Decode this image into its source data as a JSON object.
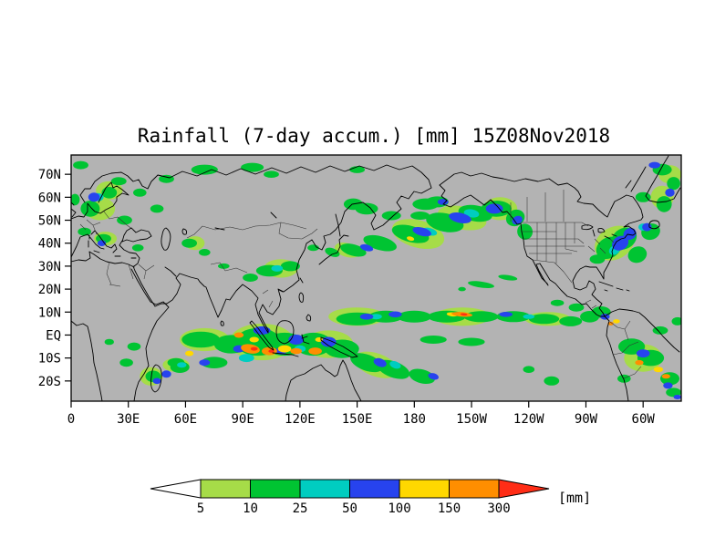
{
  "chart_data": {
    "type": "heatmap",
    "title": "Rainfall (7-day accum.) [mm] 15Z08Nov2018",
    "variable": "7-day accumulated rainfall",
    "units": "mm",
    "valid_time_label": "15Z08Nov2018",
    "projection": "equirectangular",
    "background_color": "#b3b3b3",
    "lon_range": [
      0,
      320
    ],
    "lat_range": [
      -28.8,
      78.4
    ],
    "x_ticks": [
      {
        "label": "0",
        "lon": 0
      },
      {
        "label": "30E",
        "lon": 30
      },
      {
        "label": "60E",
        "lon": 60
      },
      {
        "label": "90E",
        "lon": 90
      },
      {
        "label": "120E",
        "lon": 120
      },
      {
        "label": "150E",
        "lon": 150
      },
      {
        "label": "180",
        "lon": 180
      },
      {
        "label": "150W",
        "lon": 210
      },
      {
        "label": "120W",
        "lon": 240
      },
      {
        "label": "90W",
        "lon": 270
      },
      {
        "label": "60W",
        "lon": 300
      }
    ],
    "y_ticks": [
      {
        "label": "70N",
        "lat": 70
      },
      {
        "label": "60N",
        "lat": 60
      },
      {
        "label": "50N",
        "lat": 50
      },
      {
        "label": "40N",
        "lat": 40
      },
      {
        "label": "30N",
        "lat": 30
      },
      {
        "label": "20N",
        "lat": 20
      },
      {
        "label": "10N",
        "lat": 10
      },
      {
        "label": "EQ",
        "lat": 0
      },
      {
        "label": "10S",
        "lat": -10
      },
      {
        "label": "20S",
        "lat": -20
      }
    ],
    "colorbar": {
      "labels": [
        "5",
        "10",
        "25",
        "50",
        "100",
        "150",
        "300"
      ],
      "values_mm": [
        5,
        10,
        25,
        50,
        100,
        150,
        300
      ],
      "units_label": "[mm]",
      "below_min_color": "#ffffff",
      "segment_colors": [
        "#a6dc48",
        "#00c432",
        "#00cdc0",
        "#2743ee",
        "#ffd800",
        "#ff8e00"
      ],
      "above_max_color": "#ff2d16"
    },
    "rain_cells_format": "lon_deg(0-320 eastward), lat_deg, rx_deg, ry_deg, rotation_deg, level(1=5-10mm,2=10-25,3=25-50,4=50-100,5=100-150,6=150-300,7=over300)",
    "rain_cells": [
      [
        100,
        -3,
        17,
        8,
        0,
        1
      ],
      [
        70,
        -2,
        13,
        5,
        0,
        1
      ],
      [
        135,
        -4,
        13,
        6,
        0,
        1
      ],
      [
        150,
        8,
        15,
        4,
        0,
        1
      ],
      [
        205,
        8,
        15,
        4,
        0,
        1
      ],
      [
        250,
        7,
        12,
        3,
        0,
        1
      ],
      [
        182,
        44,
        14,
        6,
        15,
        1
      ],
      [
        205,
        51,
        13,
        5,
        12,
        1
      ],
      [
        285,
        40,
        11,
        7,
        -30,
        1
      ],
      [
        160,
        -13,
        12,
        5,
        20,
        1
      ],
      [
        300,
        -10,
        10,
        6,
        0,
        1
      ],
      [
        110,
        29,
        9,
        4,
        0,
        1
      ],
      [
        15,
        55,
        8,
        5,
        0,
        1
      ],
      [
        20,
        63,
        7,
        4,
        0,
        1
      ],
      [
        18,
        42,
        6,
        3,
        0,
        1
      ],
      [
        225,
        55,
        9,
        5,
        0,
        1
      ],
      [
        145,
        37,
        7,
        3,
        15,
        1
      ],
      [
        55,
        -13,
        7,
        3,
        0,
        1
      ],
      [
        42,
        -18,
        6,
        4,
        0,
        1
      ],
      [
        310,
        60,
        6,
        5,
        0,
        1
      ],
      [
        314,
        70,
        6,
        4,
        0,
        1
      ],
      [
        65,
        40,
        5,
        3,
        0,
        1
      ],
      [
        68,
        -2,
        10,
        3.5,
        0,
        2
      ],
      [
        84,
        -4,
        9,
        4,
        0,
        2
      ],
      [
        98,
        -3,
        12,
        6,
        0,
        2
      ],
      [
        112,
        -4,
        11,
        5,
        0,
        2
      ],
      [
        127,
        -4,
        10,
        5,
        0,
        2
      ],
      [
        142,
        -6,
        9,
        4,
        0,
        2
      ],
      [
        155,
        -12,
        9,
        3.5,
        20,
        2
      ],
      [
        169,
        -15,
        9,
        3.5,
        20,
        2
      ],
      [
        184,
        -18,
        7,
        3,
        15,
        2
      ],
      [
        75,
        -12,
        7,
        2.5,
        0,
        2
      ],
      [
        57,
        -14,
        5,
        2.5,
        0,
        2
      ],
      [
        150,
        7,
        11,
        2.8,
        0,
        2
      ],
      [
        165,
        8,
        9,
        2.6,
        0,
        2
      ],
      [
        180,
        8,
        9,
        2.6,
        0,
        2
      ],
      [
        197,
        8,
        10,
        2.6,
        0,
        2
      ],
      [
        215,
        8,
        9,
        2.4,
        0,
        2
      ],
      [
        232,
        8,
        9,
        2.4,
        0,
        2
      ],
      [
        248,
        7,
        8,
        2.2,
        0,
        2
      ],
      [
        262,
        6,
        6,
        2.2,
        0,
        2
      ],
      [
        272,
        8,
        5,
        2.5,
        0,
        2
      ],
      [
        190,
        -2,
        7,
        1.8,
        0,
        2
      ],
      [
        210,
        -3,
        7,
        1.8,
        0,
        2
      ],
      [
        148,
        37,
        7,
        2.5,
        15,
        2
      ],
      [
        162,
        40,
        9,
        3,
        15,
        2
      ],
      [
        178,
        44,
        10,
        3.5,
        15,
        2
      ],
      [
        196,
        49,
        10,
        4,
        12,
        2
      ],
      [
        212,
        53,
        9,
        3.5,
        10,
        2
      ],
      [
        223,
        55,
        8,
        3.5,
        0,
        2
      ],
      [
        233,
        51,
        5,
        3.5,
        -25,
        2
      ],
      [
        238,
        45,
        4,
        3.5,
        -20,
        2
      ],
      [
        155,
        55,
        6,
        2.5,
        0,
        2
      ],
      [
        168,
        52,
        5,
        2,
        0,
        2
      ],
      [
        186,
        57,
        7,
        2.5,
        0,
        2
      ],
      [
        148,
        57,
        5,
        2.5,
        0,
        2
      ],
      [
        104,
        28,
        7,
        2.5,
        0,
        2
      ],
      [
        115,
        30,
        5,
        2.2,
        0,
        2
      ],
      [
        94,
        25,
        4,
        1.8,
        0,
        2
      ],
      [
        80,
        30,
        3,
        1.2,
        0,
        2
      ],
      [
        70,
        36,
        3,
        1.5,
        0,
        2
      ],
      [
        62,
        40,
        4,
        2,
        0,
        2
      ],
      [
        137,
        36,
        4,
        1.8,
        20,
        2
      ],
      [
        127,
        38,
        3,
        1.4,
        0,
        2
      ],
      [
        10,
        55,
        5,
        3.5,
        0,
        2
      ],
      [
        20,
        62,
        4,
        2.5,
        0,
        2
      ],
      [
        7,
        45,
        3.5,
        1.8,
        0,
        2
      ],
      [
        17,
        42,
        4,
        2,
        0,
        2
      ],
      [
        28,
        50,
        4,
        2,
        0,
        2
      ],
      [
        25,
        67,
        4,
        1.8,
        0,
        2
      ],
      [
        2,
        59,
        2.5,
        2.5,
        0,
        2
      ],
      [
        36,
        62,
        3.5,
        1.8,
        0,
        2
      ],
      [
        45,
        55,
        3.5,
        1.8,
        0,
        2
      ],
      [
        35,
        38,
        3,
        1.5,
        0,
        2
      ],
      [
        33,
        -5,
        3.5,
        1.8,
        0,
        2
      ],
      [
        29,
        -12,
        3.5,
        1.8,
        0,
        2
      ],
      [
        20,
        -3,
        2.5,
        1.3,
        0,
        2
      ],
      [
        43,
        -18,
        4,
        2.5,
        0,
        2
      ],
      [
        55,
        -12,
        4.5,
        2,
        0,
        2
      ],
      [
        282,
        38,
        7,
        4.5,
        -30,
        2
      ],
      [
        290,
        42,
        7,
        4.5,
        -30,
        2
      ],
      [
        297,
        35,
        5,
        3.5,
        -20,
        2
      ],
      [
        304,
        45,
        5,
        3.5,
        -20,
        2
      ],
      [
        276,
        33,
        4,
        2,
        0,
        2
      ],
      [
        300,
        60,
        4,
        2.2,
        0,
        2
      ],
      [
        311,
        57,
        4,
        3.5,
        0,
        2
      ],
      [
        316,
        66,
        3.5,
        2.8,
        0,
        2
      ],
      [
        310,
        72,
        5,
        2.5,
        0,
        2
      ],
      [
        278,
        10,
        5,
        2.5,
        0,
        2
      ],
      [
        265,
        12,
        4,
        1.8,
        0,
        2
      ],
      [
        255,
        14,
        3.5,
        1.4,
        0,
        2
      ],
      [
        294,
        -5,
        7,
        3.5,
        0,
        2
      ],
      [
        304,
        -10,
        7,
        3.5,
        0,
        2
      ],
      [
        314,
        -19,
        5,
        2.8,
        0,
        2
      ],
      [
        290,
        -19,
        3.5,
        1.8,
        0,
        2
      ],
      [
        309,
        2,
        4,
        1.8,
        0,
        2
      ],
      [
        318,
        6,
        3,
        1.8,
        0,
        2
      ],
      [
        215,
        22,
        7,
        1.3,
        8,
        2
      ],
      [
        229,
        25,
        5,
        1.1,
        8,
        2
      ],
      [
        205,
        20,
        2,
        0.9,
        0,
        2
      ],
      [
        70,
        72,
        7,
        2.2,
        0,
        2
      ],
      [
        50,
        68,
        4,
        1.8,
        0,
        2
      ],
      [
        5,
        74,
        4,
        1.8,
        0,
        2
      ],
      [
        95,
        73,
        6,
        2,
        0,
        2
      ],
      [
        105,
        70,
        4,
        1.5,
        0,
        2
      ],
      [
        150,
        72,
        4,
        1.5,
        0,
        2
      ],
      [
        183,
        52,
        5,
        1.8,
        0,
        2
      ],
      [
        192,
        58,
        6,
        2.4,
        0,
        2
      ],
      [
        252,
        -20,
        4,
        2,
        0,
        2
      ],
      [
        240,
        -15,
        3,
        1.5,
        0,
        2
      ],
      [
        316,
        -25,
        4,
        2,
        0,
        2
      ],
      [
        92,
        -10,
        4,
        1.8,
        0,
        3
      ],
      [
        108,
        29,
        3,
        1.4,
        0,
        3
      ],
      [
        285,
        37,
        3,
        2,
        -30,
        3
      ],
      [
        210,
        53,
        4,
        1.8,
        10,
        3
      ],
      [
        160,
        8,
        3,
        1.2,
        0,
        3
      ],
      [
        188,
        45,
        4,
        1.6,
        15,
        3
      ],
      [
        300,
        47,
        2.5,
        1.6,
        0,
        3
      ],
      [
        120,
        -6,
        3,
        1.5,
        0,
        3
      ],
      [
        170,
        -13,
        3,
        1.5,
        20,
        3
      ],
      [
        58,
        -13,
        2.5,
        1.2,
        0,
        3
      ],
      [
        14,
        60,
        3,
        1.8,
        0,
        3
      ],
      [
        240,
        8,
        3,
        1,
        0,
        3
      ],
      [
        118,
        -2,
        4,
        2.2,
        0,
        4
      ],
      [
        100,
        2,
        4.5,
        1.8,
        0,
        4
      ],
      [
        135,
        -3,
        4,
        2.2,
        0,
        4
      ],
      [
        155,
        8,
        3.5,
        1.3,
        0,
        4
      ],
      [
        170,
        9,
        3.5,
        1.3,
        0,
        4
      ],
      [
        228,
        9,
        3.5,
        1.1,
        0,
        4
      ],
      [
        280,
        8,
        2.5,
        1.3,
        0,
        4
      ],
      [
        162,
        -12,
        3.5,
        1.8,
        20,
        4
      ],
      [
        190,
        -18,
        2.8,
        1.4,
        15,
        4
      ],
      [
        70,
        -12,
        2.8,
        1.4,
        0,
        4
      ],
      [
        50,
        -17,
        2.5,
        1.6,
        0,
        4
      ],
      [
        155,
        38,
        3.5,
        1.4,
        15,
        4
      ],
      [
        184,
        45,
        5,
        1.8,
        15,
        4
      ],
      [
        204,
        51,
        6,
        2.2,
        12,
        4
      ],
      [
        222,
        55,
        4.5,
        2.2,
        0,
        4
      ],
      [
        234,
        50,
        2.8,
        1.8,
        -25,
        4
      ],
      [
        12,
        60,
        3,
        2,
        0,
        4
      ],
      [
        16,
        40,
        2.2,
        1.3,
        0,
        4
      ],
      [
        288,
        40,
        4.5,
        3,
        -30,
        4
      ],
      [
        293,
        44,
        3.5,
        2.5,
        -30,
        4
      ],
      [
        302,
        47,
        2.5,
        1.8,
        0,
        4
      ],
      [
        314,
        62,
        2.5,
        1.8,
        0,
        4
      ],
      [
        306,
        74,
        3,
        1.4,
        0,
        4
      ],
      [
        300,
        -8,
        3.5,
        1.8,
        0,
        4
      ],
      [
        313,
        -22,
        2.5,
        1.4,
        0,
        4
      ],
      [
        45,
        -20,
        2.2,
        1.3,
        0,
        4
      ],
      [
        195,
        58,
        2.8,
        1.3,
        0,
        4
      ],
      [
        110,
        -7,
        3,
        1.5,
        0,
        4
      ],
      [
        88,
        -6,
        3,
        1.6,
        0,
        4
      ],
      [
        318,
        -27,
        2,
        1,
        0,
        4
      ],
      [
        112,
        -6,
        3.5,
        1.6,
        0,
        5
      ],
      [
        62,
        -8,
        2.2,
        1.2,
        0,
        5
      ],
      [
        178,
        42,
        2,
        0.9,
        15,
        5
      ],
      [
        308,
        -15,
        2.5,
        1.2,
        0,
        5
      ],
      [
        96,
        -2,
        2.5,
        1.2,
        0,
        5
      ],
      [
        130,
        -2,
        2,
        1,
        0,
        5
      ],
      [
        200,
        9,
        3,
        0.9,
        5,
        5
      ],
      [
        286,
        6,
        1.8,
        0.9,
        0,
        5
      ],
      [
        94,
        -6,
        5,
        2,
        10,
        6
      ],
      [
        104,
        -7,
        4,
        1.8,
        0,
        6
      ],
      [
        88,
        0,
        2.5,
        1.2,
        0,
        6
      ],
      [
        128,
        -7,
        3.5,
        1.6,
        0,
        6
      ],
      [
        205,
        9,
        5.5,
        1,
        5,
        6
      ],
      [
        298,
        -12,
        2.2,
        1.1,
        0,
        6
      ],
      [
        312,
        -18,
        2.2,
        1,
        0,
        6
      ],
      [
        283,
        5,
        1.6,
        0.8,
        0,
        6
      ],
      [
        118,
        -7,
        3,
        1.3,
        0,
        6
      ],
      [
        96,
        -6,
        1.8,
        0.8,
        0,
        7
      ],
      [
        206,
        9,
        1.8,
        0.5,
        5,
        7
      ],
      [
        105,
        -7,
        1.5,
        0.7,
        0,
        7
      ]
    ]
  }
}
